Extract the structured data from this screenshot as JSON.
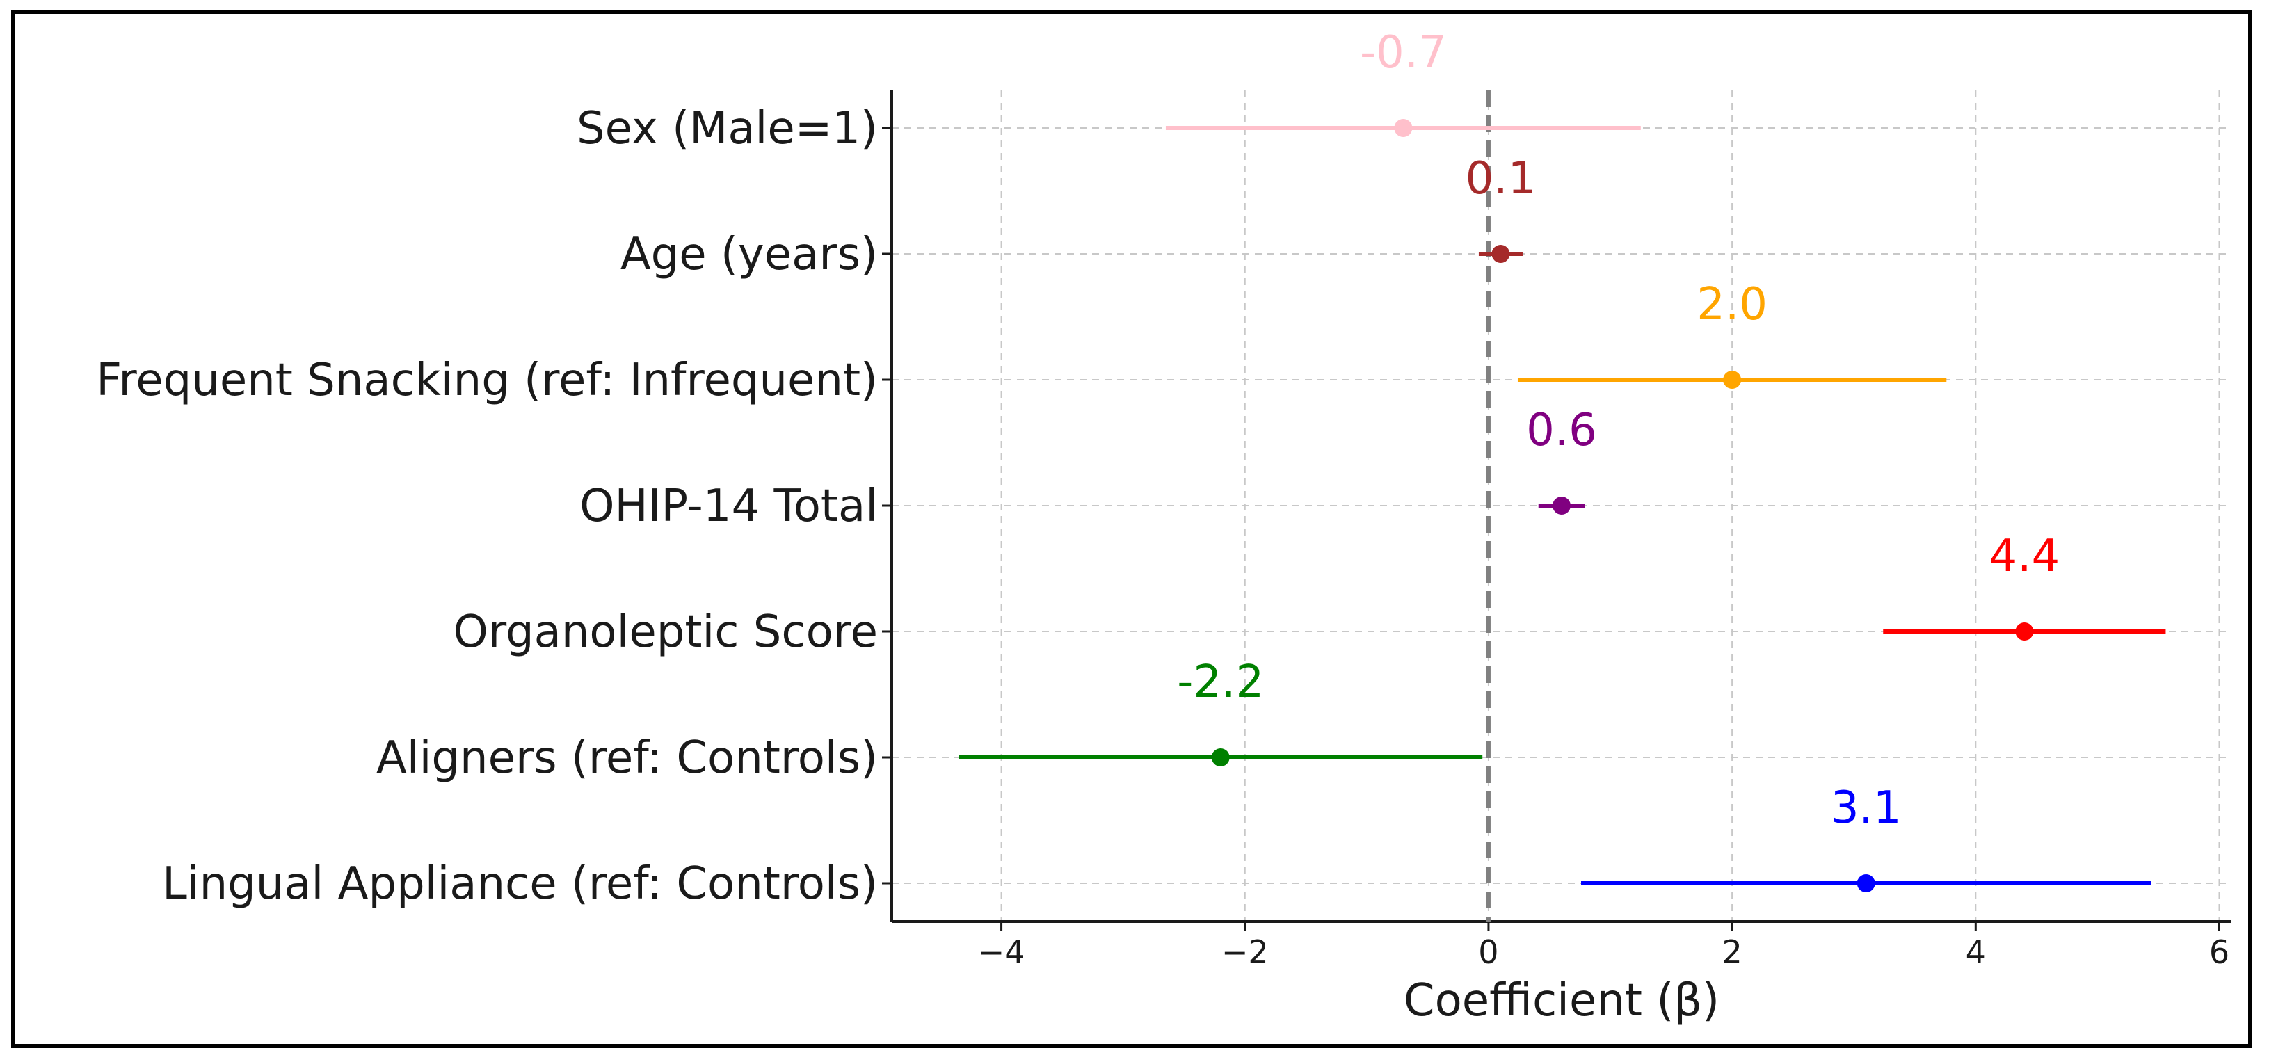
{
  "chart_data": {
    "type": "forest",
    "xlabel": "Coefficient (β)",
    "xlim": [
      -4.9,
      6.1
    ],
    "xticks": [
      -4,
      -2,
      0,
      2,
      4,
      6
    ],
    "xtick_labels": [
      "−4",
      "−2",
      "0",
      "2",
      "4",
      "6"
    ],
    "grid": true,
    "reference_line": 0,
    "rows": [
      {
        "label": "Sex (Male=1)",
        "estimate": -0.7,
        "ci_low": -2.65,
        "ci_high": 1.25,
        "value_label": "-0.7",
        "color": "#ffc0cb"
      },
      {
        "label": "Age (years)",
        "estimate": 0.1,
        "ci_low": -0.08,
        "ci_high": 0.28,
        "value_label": "0.1",
        "color": "#a52a2a"
      },
      {
        "label": "Frequent Snacking (ref: Infrequent)",
        "estimate": 2.0,
        "ci_low": 0.24,
        "ci_high": 3.76,
        "value_label": "2.0",
        "color": "#ffa500"
      },
      {
        "label": "OHIP-14 Total",
        "estimate": 0.6,
        "ci_low": 0.41,
        "ci_high": 0.79,
        "value_label": "0.6",
        "color": "#800080"
      },
      {
        "label": "Organoleptic Score",
        "estimate": 4.4,
        "ci_low": 3.24,
        "ci_high": 5.56,
        "value_label": "4.4",
        "color": "#ff0000"
      },
      {
        "label": "Aligners (ref: Controls)",
        "estimate": -2.2,
        "ci_low": -4.35,
        "ci_high": -0.05,
        "value_label": "-2.2",
        "color": "#008000"
      },
      {
        "label": "Lingual Appliance (ref: Controls)",
        "estimate": 3.1,
        "ci_low": 0.76,
        "ci_high": 5.44,
        "value_label": "3.1",
        "color": "#0000ff"
      }
    ]
  }
}
